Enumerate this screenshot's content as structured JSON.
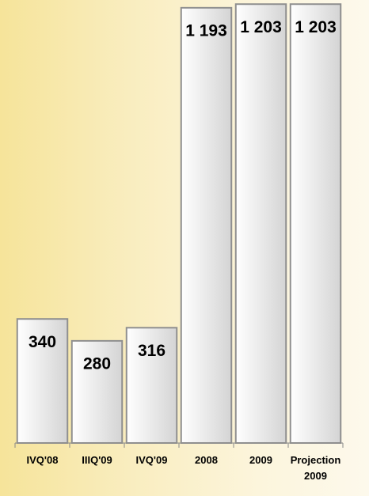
{
  "chart_data": {
    "type": "bar",
    "categories": [
      "IVQ'08",
      "IIIQ'09",
      "IVQ'09",
      "2008",
      "2009",
      "Projection 2009"
    ],
    "values": [
      340,
      280,
      316,
      1193,
      1203,
      1203
    ],
    "value_labels": [
      "340",
      "280",
      "316",
      "1 193",
      "1 203",
      "1 203"
    ],
    "ylim": [
      0,
      1210
    ]
  }
}
